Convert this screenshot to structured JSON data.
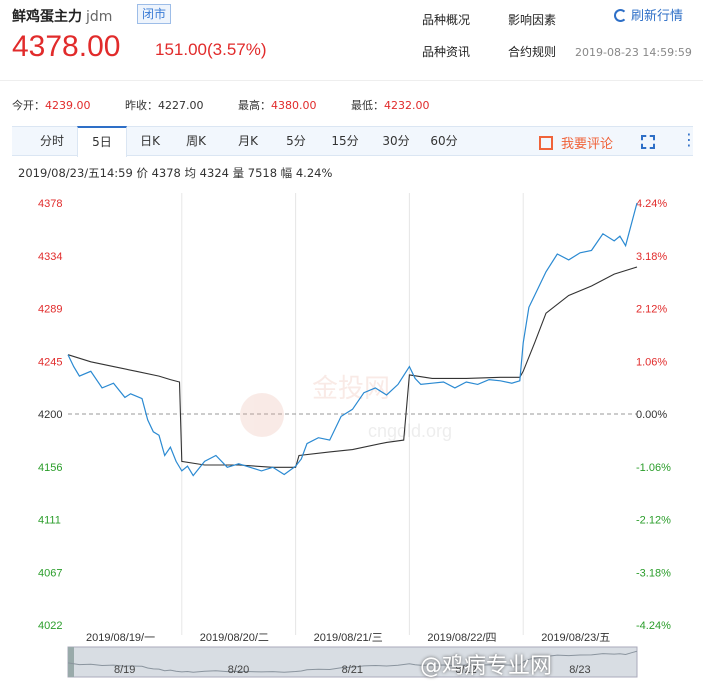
{
  "header": {
    "name": "鲜鸡蛋主力",
    "code": "jdm",
    "status": "闭市",
    "price": "4378.00",
    "change": "151.00(3.57%)",
    "nav": [
      "品种概况",
      "影响因素",
      "品种资讯",
      "合约规则"
    ],
    "refresh_label": "刷新行情",
    "timestamp": "2019-08-23 14:59:59"
  },
  "quote": {
    "open_label": "今开：",
    "open": "4239.00",
    "prev_label": "昨收：",
    "prev": "4227.00",
    "high_label": "最高：",
    "high": "4380.00",
    "low_label": "最低：",
    "low": "4232.00"
  },
  "tabs": [
    "分时",
    "5日",
    "日K",
    "周K",
    "月K",
    "5分",
    "15分",
    "30分",
    "60分"
  ],
  "active_tab": "5日",
  "comment_label": "我要评论",
  "info_line": "2019/08/23/五14:59  价 4378  均 4324  量 7518  幅 4.24%",
  "colors": {
    "up": "#e12b2b",
    "down": "#2a9d2a",
    "price_line": "#2b8ad2",
    "avg_line": "#333333"
  },
  "watermark": {
    "site": "cngold.org",
    "brand": "金投网",
    "footer": "@鸡病专业网"
  },
  "chart_data": {
    "type": "line",
    "title": "",
    "prev_close": 4200,
    "ylim": [
      4022,
      4378
    ],
    "y_ticks_left": [
      "4378",
      "4334",
      "4289",
      "4245",
      "4200",
      "4156",
      "4111",
      "4067",
      "4022"
    ],
    "y_ticks_right": [
      "4.24%",
      "3.18%",
      "2.12%",
      "1.06%",
      "0.00%",
      "-1.06%",
      "-2.12%",
      "-3.18%",
      "-4.24%"
    ],
    "x_labels": [
      "2019/08/19/一",
      "2019/08/20/二",
      "2019/08/21/三",
      "2019/08/22/四",
      "2019/08/23/五"
    ],
    "navigator_labels": [
      "8/19",
      "8/20",
      "8/21",
      "8/22",
      "8/23"
    ],
    "series": [
      {
        "key": "price",
        "x": [
          0,
          0.05,
          0.1,
          0.2,
          0.3,
          0.4,
          0.5,
          0.55,
          0.6,
          0.65,
          0.7,
          0.75,
          0.8,
          0.85,
          0.9,
          0.95,
          1.0,
          1.05,
          1.1,
          1.2,
          1.3,
          1.4,
          1.5,
          1.6,
          1.7,
          1.8,
          1.9,
          2.0,
          2.05,
          2.1,
          2.2,
          2.3,
          2.4,
          2.5,
          2.6,
          2.7,
          2.8,
          2.9,
          3.0,
          3.05,
          3.1,
          3.2,
          3.3,
          3.4,
          3.5,
          3.6,
          3.7,
          3.8,
          3.9,
          3.97,
          4.0,
          4.05,
          4.1,
          4.2,
          4.3,
          4.4,
          4.5,
          4.6,
          4.7,
          4.8,
          4.85,
          4.9,
          4.95,
          5.0
        ],
        "values": [
          4250,
          4240,
          4232,
          4236,
          4222,
          4226,
          4214,
          4217,
          4215,
          4213,
          4195,
          4185,
          4182,
          4165,
          4172,
          4160,
          4152,
          4156,
          4148,
          4160,
          4165,
          4155,
          4158,
          4155,
          4152,
          4155,
          4149,
          4156,
          4162,
          4175,
          4180,
          4178,
          4198,
          4204,
          4218,
          4222,
          4216,
          4225,
          4240,
          4230,
          4225,
          4226,
          4227,
          4222,
          4227,
          4225,
          4229,
          4228,
          4226,
          4228,
          4260,
          4290,
          4300,
          4320,
          4335,
          4330,
          4336,
          4338,
          4352,
          4346,
          4350,
          4342,
          4360,
          4378
        ]
      },
      {
        "key": "avg",
        "x": [
          0,
          0.2,
          0.4,
          0.6,
          0.8,
          0.9,
          0.98,
          1.0,
          1.2,
          1.5,
          1.8,
          2.0,
          2.03,
          2.3,
          2.5,
          2.8,
          2.95,
          3.0,
          3.2,
          3.5,
          3.8,
          3.97,
          4.0,
          4.1,
          4.2,
          4.4,
          4.6,
          4.8,
          5.0
        ],
        "values": [
          4250,
          4244,
          4240,
          4236,
          4232,
          4229,
          4227,
          4160,
          4157,
          4157,
          4155,
          4155,
          4165,
          4168,
          4170,
          4176,
          4178,
          4233,
          4230,
          4230,
          4231,
          4231,
          4236,
          4260,
          4285,
          4300,
          4308,
          4318,
          4324
        ]
      }
    ]
  }
}
